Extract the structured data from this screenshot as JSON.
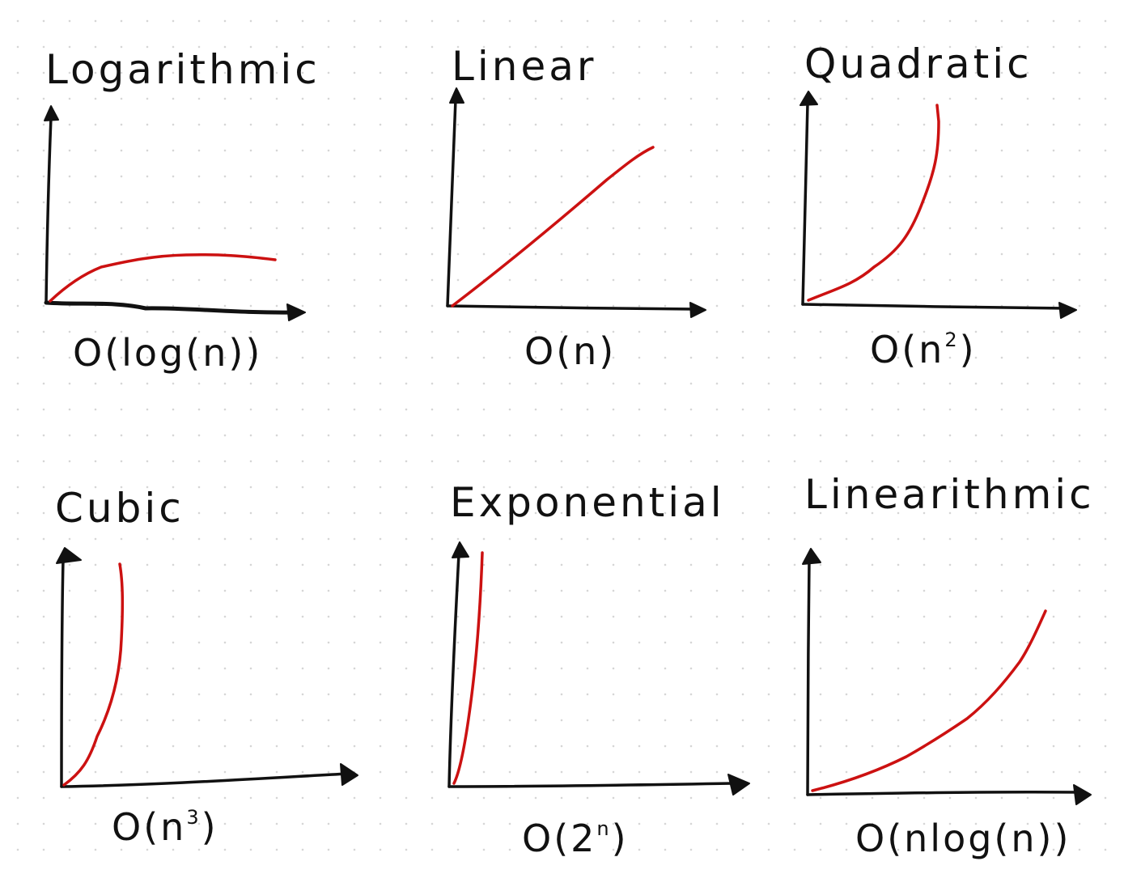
{
  "colors": {
    "ink": "#111111",
    "curve": "#cc1111",
    "dots": "#d6d6d6"
  },
  "panels": [
    {
      "id": "logarithmic",
      "title": "Logarithmic",
      "notation_pre": "O(log(n))",
      "notation_sup": "",
      "notation_post": ""
    },
    {
      "id": "linear",
      "title": "Linear",
      "notation_pre": "O(n)",
      "notation_sup": "",
      "notation_post": ""
    },
    {
      "id": "quadratic",
      "title": "Quadratic",
      "notation_pre": "O(n",
      "notation_sup": "2",
      "notation_post": ")"
    },
    {
      "id": "cubic",
      "title": "Cubic",
      "notation_pre": "O(n",
      "notation_sup": "3",
      "notation_post": ")"
    },
    {
      "id": "exponential",
      "title": "Exponential",
      "notation_pre": "O(2",
      "notation_sup": "n",
      "notation_post": ")"
    },
    {
      "id": "linearithmic",
      "title": "Linearithmic",
      "notation_pre": "O(nlog(n))",
      "notation_sup": "",
      "notation_post": ""
    }
  ]
}
